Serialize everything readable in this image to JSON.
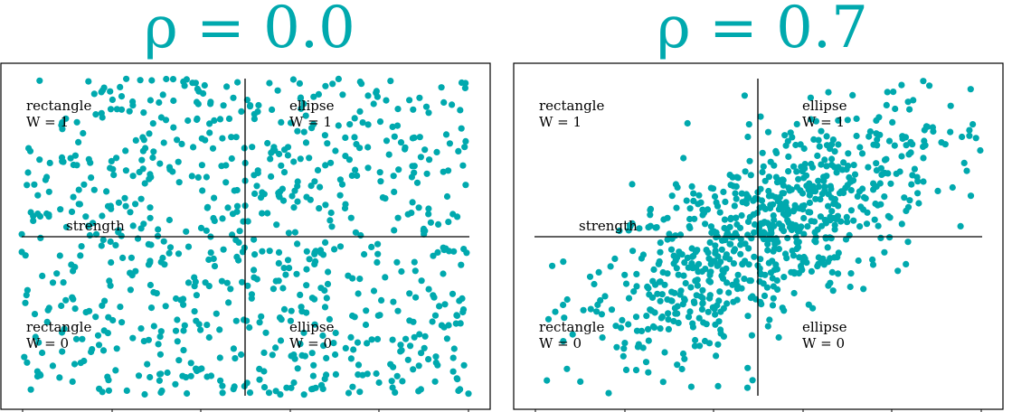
{
  "colors": {
    "point": "#00A9AE",
    "title": "#00A9AE",
    "axis": "#000000"
  },
  "panels": [
    {
      "title": "ρ = 0.0",
      "labels": {
        "top_left": [
          "rectangle",
          "W = 1"
        ],
        "top_right": [
          "ellipse",
          "W = 1"
        ],
        "bottom_left": [
          "rectangle",
          "W = 0"
        ],
        "bottom_right": [
          "ellipse",
          "W = 0"
        ],
        "x_axis": "strength"
      }
    },
    {
      "title": "ρ = 0.7",
      "labels": {
        "top_left": [
          "rectangle",
          "W = 1"
        ],
        "top_right": [
          "ellipse",
          "W = 1"
        ],
        "bottom_left": [
          "rectangle",
          "W = 0"
        ],
        "bottom_right": [
          "ellipse",
          "W = 0"
        ],
        "x_axis": "strength"
      }
    }
  ],
  "chart_data": [
    {
      "type": "scatter",
      "title": "ρ = 0.0",
      "correlation": 0.0,
      "n_points": 800,
      "distribution": "uniform",
      "xlim": [
        -1,
        1
      ],
      "ylim": [
        -1,
        1
      ],
      "xlabel": "strength",
      "grid": false,
      "quadrants": [
        "rectangle W = 1",
        "ellipse W = 1",
        "rectangle W = 0",
        "ellipse W = 0"
      ]
    },
    {
      "type": "scatter",
      "title": "ρ = 0.7",
      "correlation": 0.7,
      "n_points": 800,
      "distribution": "bivariate normal",
      "xlim": [
        -1,
        1
      ],
      "ylim": [
        -1,
        1
      ],
      "xlabel": "strength",
      "grid": false,
      "quadrants": [
        "rectangle W = 1",
        "ellipse W = 1",
        "rectangle W = 0",
        "ellipse W = 0"
      ]
    }
  ]
}
